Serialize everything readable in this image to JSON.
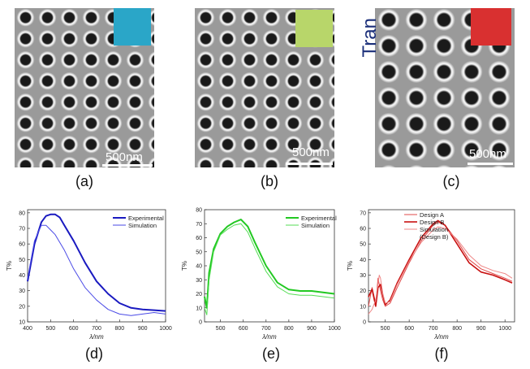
{
  "panels": {
    "a": {
      "label": "(a)",
      "scale_text": "500nm",
      "swatch_color": "#2aa6c8"
    },
    "b": {
      "label": "(b)",
      "scale_text": "500nm",
      "swatch_color": "#b8d66a"
    },
    "c": {
      "label": "(c)",
      "scale_text": "500nm",
      "swatch_color": "#d93030",
      "overlay_text": "Tran"
    },
    "d": {
      "label": "(d)"
    },
    "e": {
      "label": "(e)"
    },
    "f": {
      "label": "(f)"
    }
  },
  "chart_data": [
    {
      "type": "line",
      "ylabel": "T%",
      "xlabel": "λ/nm",
      "xlim": [
        400,
        1000
      ],
      "ylim": [
        10,
        82
      ],
      "xticks": [
        400,
        500,
        600,
        700,
        800,
        900,
        1000
      ],
      "yticks": [
        10,
        20,
        30,
        40,
        50,
        60,
        70,
        80
      ],
      "legend_position": "top-right",
      "series": [
        {
          "name": "Experimental",
          "color": "#1a1ac0",
          "width": 2,
          "x": [
            400,
            430,
            460,
            480,
            500,
            520,
            540,
            560,
            600,
            650,
            700,
            750,
            800,
            850,
            900,
            950,
            1000
          ],
          "y": [
            36,
            60,
            74,
            78,
            79,
            79,
            77,
            72,
            62,
            48,
            36,
            28,
            22,
            19,
            18,
            17.5,
            17
          ]
        },
        {
          "name": "Simulation",
          "color": "#4a4ae6",
          "width": 1,
          "x": [
            400,
            430,
            460,
            480,
            500,
            520,
            560,
            600,
            650,
            700,
            750,
            800,
            850,
            900,
            950,
            1000
          ],
          "y": [
            38,
            62,
            72,
            72,
            69,
            66,
            56,
            44,
            32,
            24,
            18,
            15,
            14,
            15,
            16,
            15
          ]
        }
      ]
    },
    {
      "type": "line",
      "ylabel": "T%",
      "xlabel": "λ/nm",
      "xlim": [
        430,
        1000
      ],
      "ylim": [
        0,
        80
      ],
      "xticks": [
        500,
        600,
        700,
        800,
        900,
        1000
      ],
      "yticks": [
        0,
        10,
        20,
        30,
        40,
        50,
        60,
        70,
        80
      ],
      "legend_position": "top-right",
      "series": [
        {
          "name": "Experimental",
          "color": "#22c822",
          "width": 2,
          "x": [
            430,
            440,
            450,
            470,
            500,
            530,
            560,
            590,
            620,
            650,
            700,
            750,
            800,
            850,
            900,
            950,
            1000
          ],
          "y": [
            18,
            10,
            35,
            52,
            63,
            68,
            71,
            73,
            68,
            57,
            40,
            28,
            23,
            22,
            22,
            21,
            20
          ]
        },
        {
          "name": "Simulation",
          "color": "#55dd55",
          "width": 1,
          "x": [
            430,
            440,
            450,
            470,
            500,
            530,
            560,
            590,
            620,
            650,
            700,
            750,
            800,
            850,
            900,
            950,
            1000
          ],
          "y": [
            10,
            5,
            30,
            50,
            62,
            66,
            69,
            70,
            64,
            53,
            36,
            25,
            20,
            19,
            19,
            18,
            17
          ]
        }
      ]
    },
    {
      "type": "line",
      "ylabel": "T%",
      "xlabel": "λ/nm",
      "xlim": [
        430,
        1040
      ],
      "ylim": [
        0,
        72
      ],
      "xticks": [
        500,
        600,
        700,
        800,
        900,
        1000
      ],
      "yticks": [
        0,
        10,
        20,
        30,
        40,
        50,
        60,
        70
      ],
      "legend_position": "top-left",
      "series": [
        {
          "name": "Design A",
          "color": "#e04a4a",
          "width": 1,
          "x": [
            430,
            445,
            460,
            470,
            480,
            490,
            500,
            520,
            550,
            600,
            650,
            700,
            720,
            750,
            800,
            850,
            900,
            950,
            1000,
            1030
          ],
          "y": [
            10,
            22,
            12,
            28,
            20,
            14,
            10,
            12,
            22,
            38,
            52,
            62,
            64,
            62,
            52,
            40,
            34,
            31,
            28,
            26
          ]
        },
        {
          "name": "Design B",
          "color": "#c81010",
          "width": 1.6,
          "x": [
            430,
            445,
            460,
            470,
            480,
            490,
            500,
            520,
            550,
            600,
            650,
            700,
            720,
            750,
            800,
            850,
            900,
            950,
            1000,
            1030
          ],
          "y": [
            16,
            21,
            10,
            22,
            24,
            17,
            11,
            14,
            25,
            40,
            54,
            63,
            65,
            62,
            50,
            38,
            32,
            30,
            27,
            25
          ]
        },
        {
          "name": "Simulation\n(Design B)",
          "color": "#ee8888",
          "width": 1,
          "x": [
            430,
            445,
            460,
            475,
            480,
            490,
            500,
            520,
            550,
            600,
            650,
            700,
            720,
            750,
            800,
            850,
            900,
            950,
            1000,
            1030
          ],
          "y": [
            5,
            8,
            14,
            30,
            28,
            18,
            12,
            13,
            24,
            39,
            51,
            59,
            61,
            60,
            53,
            43,
            36,
            33,
            31,
            28
          ]
        }
      ]
    }
  ]
}
